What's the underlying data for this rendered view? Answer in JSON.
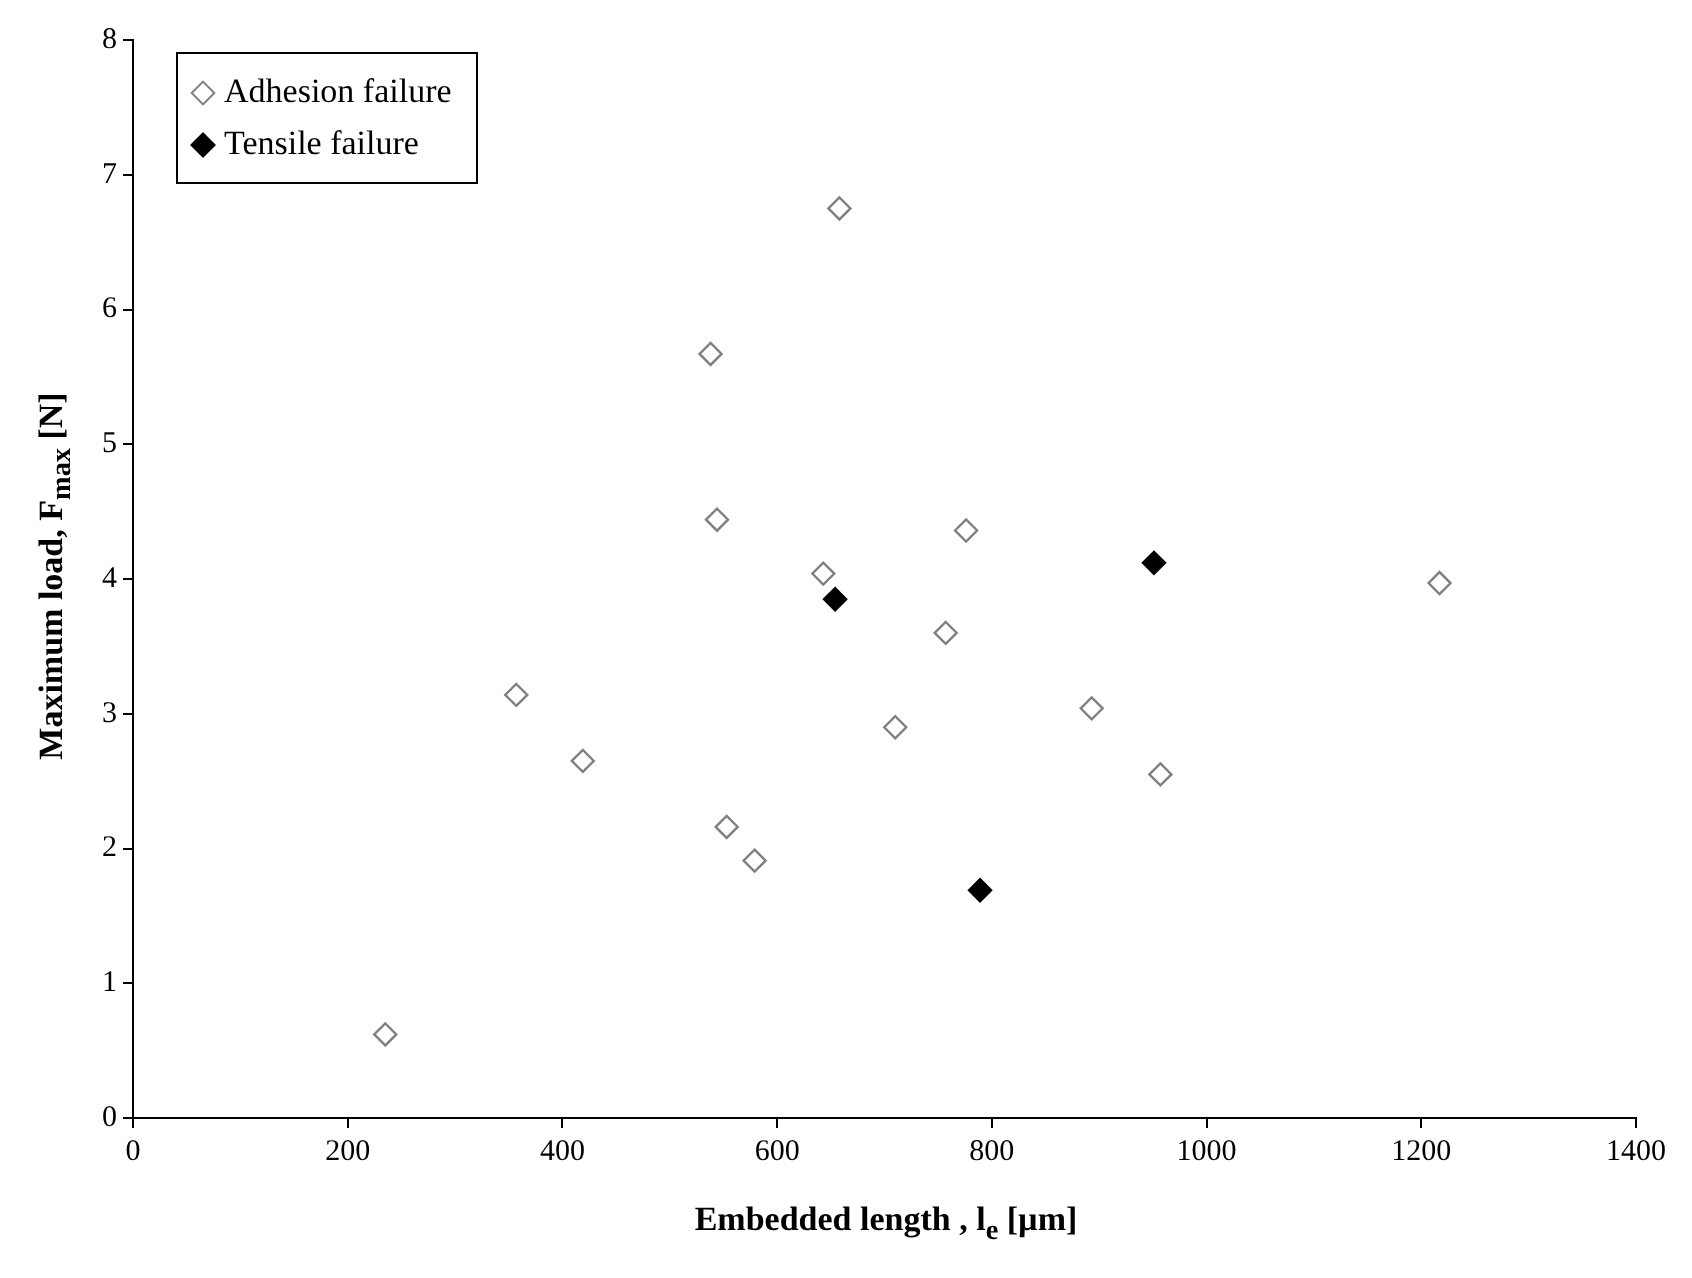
{
  "chart_data": {
    "type": "scatter",
    "xlabel": "Embedded length , l$_{e}$ [µm]",
    "ylabel": "Maximum load, F$_{max}$ [N]",
    "xlim": [
      0,
      1400
    ],
    "xticks": [
      0,
      200,
      400,
      600,
      800,
      1000,
      1200,
      1400
    ],
    "ylim": [
      0,
      8
    ],
    "yticks": [
      0,
      1,
      2,
      3,
      4,
      5,
      6,
      7,
      8
    ],
    "grid": false,
    "legend": "top left",
    "marker": "diamond",
    "series": [
      {
        "name": "Adhesion failure",
        "color": "#808080",
        "x": [
          235,
          357,
          419,
          538,
          544,
          553,
          579,
          643,
          658,
          710,
          757,
          776,
          893,
          957,
          1217
        ],
        "values": [
          0.62,
          3.14,
          2.65,
          5.67,
          4.44,
          2.16,
          1.91,
          4.04,
          6.75,
          2.9,
          3.6,
          4.36,
          3.04,
          2.55,
          3.97
        ]
      },
      {
        "name": "Tensile failure",
        "color": "#000000",
        "x": [
          654,
          789,
          951
        ],
        "values": [
          3.85,
          1.69,
          4.12
        ]
      }
    ]
  }
}
